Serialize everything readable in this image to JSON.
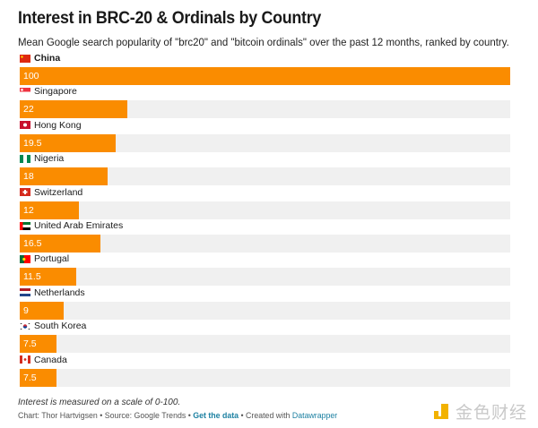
{
  "chart_data": {
    "type": "bar",
    "orientation": "horizontal",
    "title": "Interest in BRC-20 & Ordinals by Country",
    "subtitle": "Mean Google search popularity of \"brc20\" and \"bitcoin ordinals\" over the past 12 months, ranked by country.",
    "xlabel": "",
    "ylabel": "",
    "xlim": [
      0,
      100
    ],
    "categories": [
      "China",
      "Singapore",
      "Hong Kong",
      "Nigeria",
      "Switzerland",
      "United Arab Emirates",
      "Portugal",
      "Netherlands",
      "South Korea",
      "Canada"
    ],
    "values": [
      100,
      22,
      19.5,
      18,
      12,
      16.5,
      11.5,
      9,
      7.5,
      7.5
    ],
    "value_labels": [
      "100",
      "22",
      "19.5",
      "18",
      "12",
      "16.5",
      "11.5",
      "9",
      "7.5",
      "7.5"
    ],
    "flags": [
      "cn-flag-icon",
      "sg-flag-icon",
      "hk-flag-icon",
      "ng-flag-icon",
      "ch-flag-icon",
      "ae-flag-icon",
      "pt-flag-icon",
      "nl-flag-icon",
      "kr-flag-icon",
      "ca-flag-icon"
    ],
    "bar_color": "#fa8c00",
    "track_color": "#f0f0f0",
    "grid": false,
    "legend": "none"
  },
  "footer": {
    "notes": "Interest is measured on a scale of 0-100.",
    "credit": "Chart: Thor Hartvigsen • Source: Google Trends • ",
    "get_data": "Get the data",
    "created_with": " • Created with ",
    "datawrapper": "Datawrapper"
  },
  "watermark": {
    "text": "金色财经"
  }
}
